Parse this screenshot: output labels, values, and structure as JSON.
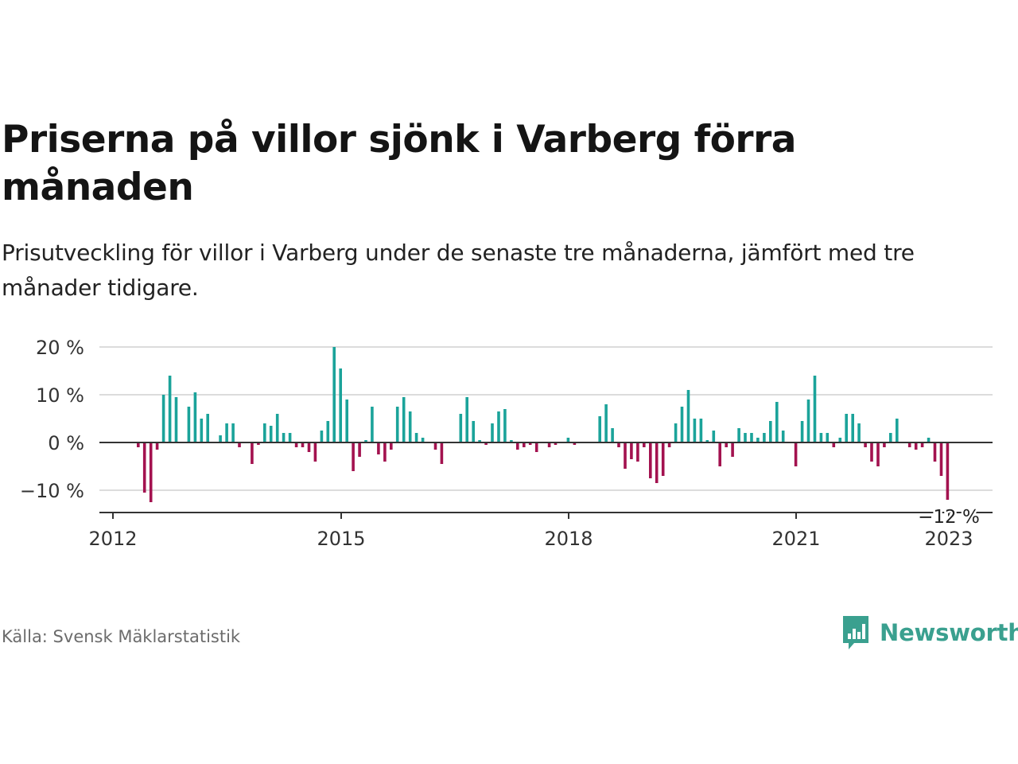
{
  "header": {
    "title": "Priserna på villor sjönk i Varberg förra månaden",
    "subtitle": "Prisutveckling för villor i Varberg under de senaste tre månaderna, jämfört med tre månader tidigare."
  },
  "footer": {
    "source": "Källa: Svensk Mäklarstatistik",
    "brand": "Newsworthy"
  },
  "colors": {
    "positive": "#1ba39a",
    "negative": "#a3124f",
    "grid": "#dcdcdc",
    "zero_line": "#333333",
    "brand": "#3aa08f"
  },
  "chart_data": {
    "type": "bar",
    "x_ticks": [
      "2012",
      "2015",
      "2018",
      "2021",
      "2023"
    ],
    "y_ticks": [
      {
        "value": 20,
        "label": "20 %"
      },
      {
        "value": 10,
        "label": "10 %"
      },
      {
        "value": 0,
        "label": "0 %"
      },
      {
        "value": -10,
        "label": "−10 %"
      }
    ],
    "ylim": [
      -15,
      21
    ],
    "start": "2012-01",
    "grid": true,
    "last_label": "−12 %",
    "values": [
      0,
      0,
      0,
      0,
      -1,
      -10.5,
      -12.5,
      -1.5,
      10,
      14,
      9.5,
      0,
      7.5,
      10.5,
      5,
      6,
      0,
      1.5,
      4,
      4,
      -1,
      0,
      -4.5,
      -0.5,
      4,
      3.5,
      6,
      2,
      2,
      -1,
      -1,
      -2,
      -4,
      2.5,
      4.5,
      20,
      15.5,
      9,
      -6,
      -3,
      0.5,
      7.5,
      -2.5,
      -4,
      -1.5,
      7.5,
      9.5,
      6.5,
      2,
      1,
      0,
      -1.5,
      -4.5,
      0,
      0,
      6,
      9.5,
      4.5,
      0.5,
      -0.5,
      4,
      6.5,
      7,
      0.5,
      -1.5,
      -1,
      -0.5,
      -2,
      0,
      -1,
      -0.5,
      0,
      1,
      -0.5,
      0,
      0,
      0,
      5.5,
      8,
      3,
      -1,
      -5.5,
      -3.5,
      -4,
      -1,
      -7.5,
      -8.5,
      -7,
      -1,
      4,
      7.5,
      11,
      5,
      5,
      0.5,
      2.5,
      -5,
      -1,
      -3,
      3,
      2,
      2,
      1,
      2,
      4.5,
      8.5,
      2.5,
      0,
      -5,
      4.5,
      9,
      14,
      2,
      2,
      -1,
      1,
      6,
      6,
      4,
      -1,
      -4,
      -5,
      -1,
      2,
      5,
      0,
      -1,
      -1.5,
      -1,
      1,
      -4,
      -7,
      -12
    ]
  }
}
